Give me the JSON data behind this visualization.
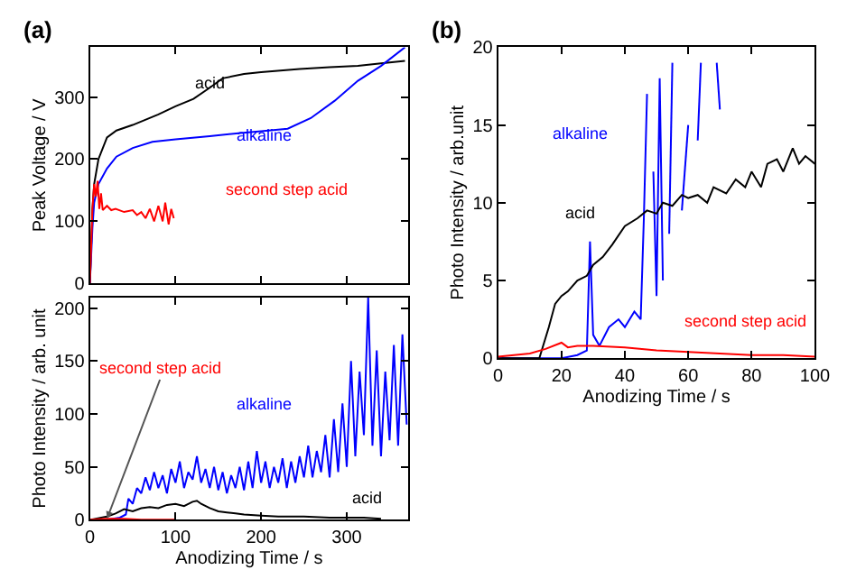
{
  "chart_data": [
    {
      "type": "line",
      "title": "(a)",
      "ylabel": "Peak Voltage / V",
      "xlim": [
        0,
        372
      ],
      "xticks": [
        0,
        100,
        200,
        300
      ],
      "ylim": [
        0,
        380
      ],
      "yticks": [
        0,
        100,
        200,
        300
      ],
      "tick_labels": "y",
      "series": [
        {
          "name": "acid",
          "color": "#000000",
          "x": [
            0,
            3,
            5,
            10,
            20,
            31,
            50,
            80,
            100,
            121,
            140,
            155,
            180,
            200,
            245,
            280,
            313,
            340,
            368
          ],
          "values": [
            0,
            120,
            160,
            200,
            235,
            246,
            255,
            272,
            285,
            297,
            315,
            330,
            337,
            340,
            345,
            348,
            350,
            354,
            358
          ]
        },
        {
          "name": "alkaline",
          "color": "#0000ff",
          "x": [
            0,
            3,
            5,
            10,
            20,
            31,
            50,
            73,
            100,
            140,
            176,
            200,
            231,
            258,
            286,
            313,
            340,
            368
          ],
          "values": [
            0,
            90,
            130,
            160,
            185,
            204,
            218,
            228,
            232,
            237,
            242,
            245,
            249,
            266,
            294,
            326,
            350,
            380
          ]
        },
        {
          "name": "second step acid",
          "color": "#ff0000",
          "x": [
            0,
            3,
            5,
            7,
            9,
            11,
            13,
            15,
            20,
            25,
            30,
            40,
            50,
            55,
            60,
            65,
            70,
            75,
            80,
            85,
            88,
            92,
            95,
            98
          ],
          "values": [
            0,
            120,
            160,
            140,
            165,
            120,
            145,
            118,
            125,
            118,
            120,
            115,
            118,
            110,
            115,
            105,
            120,
            100,
            125,
            100,
            130,
            95,
            120,
            105
          ]
        }
      ]
    },
    {
      "type": "line",
      "xlabel": "Anodizing Time / s",
      "ylabel": "Photo Intensity / arb. unit",
      "xlim": [
        0,
        372
      ],
      "xticks": [
        0,
        100,
        200,
        300
      ],
      "ylim": [
        0,
        210
      ],
      "yticks": [
        0,
        50,
        100,
        150,
        200
      ],
      "series": [
        {
          "name": "alkaline",
          "color": "#0000ff",
          "x": [
            0,
            20,
            35,
            42,
            45,
            50,
            55,
            60,
            65,
            70,
            75,
            80,
            85,
            90,
            95,
            100,
            105,
            110,
            115,
            120,
            125,
            130,
            135,
            140,
            145,
            150,
            155,
            160,
            165,
            170,
            175,
            180,
            185,
            190,
            195,
            200,
            205,
            210,
            215,
            220,
            225,
            230,
            235,
            240,
            245,
            250,
            255,
            260,
            265,
            270,
            275,
            280,
            285,
            290,
            295,
            300,
            305,
            310,
            315,
            320,
            325,
            330,
            335,
            340,
            345,
            350,
            355,
            360,
            365,
            370
          ],
          "values": [
            0,
            0,
            2,
            5,
            20,
            15,
            30,
            25,
            40,
            28,
            45,
            30,
            42,
            25,
            48,
            35,
            55,
            30,
            45,
            38,
            60,
            35,
            48,
            30,
            50,
            28,
            45,
            25,
            42,
            30,
            50,
            28,
            55,
            30,
            65,
            35,
            55,
            30,
            50,
            35,
            58,
            30,
            55,
            35,
            60,
            40,
            70,
            40,
            65,
            45,
            80,
            40,
            95,
            45,
            110,
            50,
            150,
            60,
            140,
            80,
            210,
            70,
            160,
            60,
            140,
            75,
            165,
            70,
            175,
            90
          ]
        },
        {
          "name": "acid",
          "color": "#000000",
          "x": [
            0,
            20,
            30,
            40,
            50,
            60,
            70,
            80,
            90,
            100,
            110,
            120,
            125,
            130,
            140,
            150,
            160,
            170,
            180,
            200,
            220,
            250,
            280,
            300,
            320,
            340
          ],
          "values": [
            0,
            3,
            6,
            10,
            8,
            11,
            12,
            11,
            14,
            15,
            13,
            17,
            18,
            15,
            11,
            8,
            7,
            6,
            5,
            4,
            3,
            3,
            2,
            2,
            2,
            1
          ]
        },
        {
          "name": "second step acid",
          "color": "#ff0000",
          "x": [
            0,
            20,
            40,
            60,
            80,
            100
          ],
          "values": [
            0,
            1,
            1,
            0,
            0,
            0
          ]
        }
      ]
    },
    {
      "type": "line",
      "title": "(b)",
      "xlabel": "Anodizing Time / s",
      "ylabel": "Photo Intensity / arb.unit",
      "xlim": [
        0,
        100
      ],
      "xticks": [
        0,
        20,
        40,
        60,
        80,
        100
      ],
      "ylim": [
        0,
        20
      ],
      "yticks": [
        0,
        5,
        10,
        15,
        20
      ],
      "series": [
        {
          "name": "alkaline",
          "color": "#0000ff",
          "x": [
            0,
            20,
            25,
            28,
            29,
            30,
            32,
            35,
            38,
            40,
            43,
            45,
            46,
            47,
            48,
            49,
            50,
            51,
            52,
            53,
            54,
            55,
            56,
            57,
            58,
            60,
            61,
            63,
            64,
            66,
            69,
            70
          ],
          "values": [
            0,
            0,
            0.2,
            0.5,
            7.5,
            1.5,
            0.8,
            2,
            2.5,
            2,
            3,
            2.5,
            9,
            17,
            null,
            12,
            4,
            18,
            5,
            null,
            8,
            19,
            null,
            null,
            9.5,
            15,
            null,
            14,
            19,
            null,
            19,
            16
          ]
        },
        {
          "name": "acid",
          "color": "#000000",
          "x": [
            0,
            13,
            16,
            18,
            20,
            22,
            25,
            28,
            30,
            33,
            36,
            40,
            44,
            47,
            50,
            52,
            55,
            58,
            60,
            63,
            66,
            68,
            72,
            75,
            78,
            80,
            83,
            85,
            88,
            90,
            93,
            95,
            97,
            100
          ],
          "values": [
            0,
            0,
            2,
            3.5,
            4,
            4.3,
            5,
            5.3,
            6,
            6.5,
            7.3,
            8.5,
            9,
            9.5,
            9.3,
            10,
            9.8,
            10.5,
            10.3,
            10.5,
            10,
            11,
            10.6,
            11.5,
            11,
            12,
            11,
            12.5,
            12.8,
            12,
            13.5,
            12.5,
            13,
            12.5
          ]
        },
        {
          "name": "second step acid",
          "color": "#ff0000",
          "x": [
            0,
            10,
            15,
            20,
            22,
            25,
            30,
            40,
            50,
            60,
            70,
            80,
            90,
            100
          ],
          "values": [
            0.1,
            0.3,
            0.6,
            1,
            0.7,
            0.8,
            0.8,
            0.7,
            0.5,
            0.4,
            0.3,
            0.2,
            0.2,
            0.1
          ]
        }
      ]
    }
  ]
}
